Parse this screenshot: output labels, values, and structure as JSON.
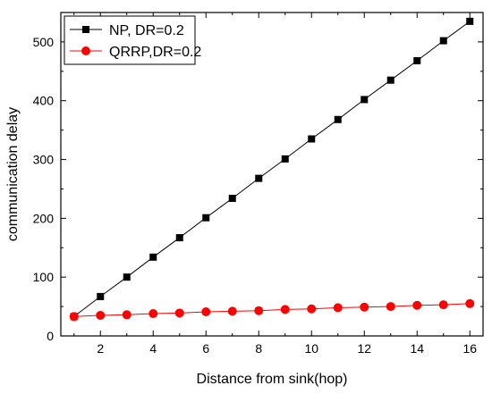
{
  "chart_data": {
    "type": "line",
    "title": "",
    "xlabel": "Distance from sink(hop)",
    "ylabel": "communication delay",
    "x": [
      1,
      2,
      3,
      4,
      5,
      6,
      7,
      8,
      9,
      10,
      11,
      12,
      13,
      14,
      15,
      16
    ],
    "xlim": [
      0.5,
      16.5
    ],
    "ylim": [
      0,
      550
    ],
    "xticks": [
      2,
      4,
      6,
      8,
      10,
      12,
      14,
      16
    ],
    "yticks": [
      0,
      100,
      200,
      300,
      400,
      500
    ],
    "grid": false,
    "legend_position": "top-left",
    "series": [
      {
        "name": "NP, DR=0.2",
        "color": "#000000",
        "marker": "square",
        "values": [
          33,
          67,
          100,
          134,
          167,
          201,
          234,
          268,
          301,
          335,
          368,
          402,
          435,
          468,
          502,
          535
        ]
      },
      {
        "name": "QRRP,DR=0.2",
        "color": "#ff0000",
        "marker": "circle",
        "values": [
          33,
          35,
          36,
          38,
          39,
          41,
          42,
          43,
          45,
          46,
          48,
          49,
          50,
          52,
          53,
          55
        ]
      }
    ]
  }
}
